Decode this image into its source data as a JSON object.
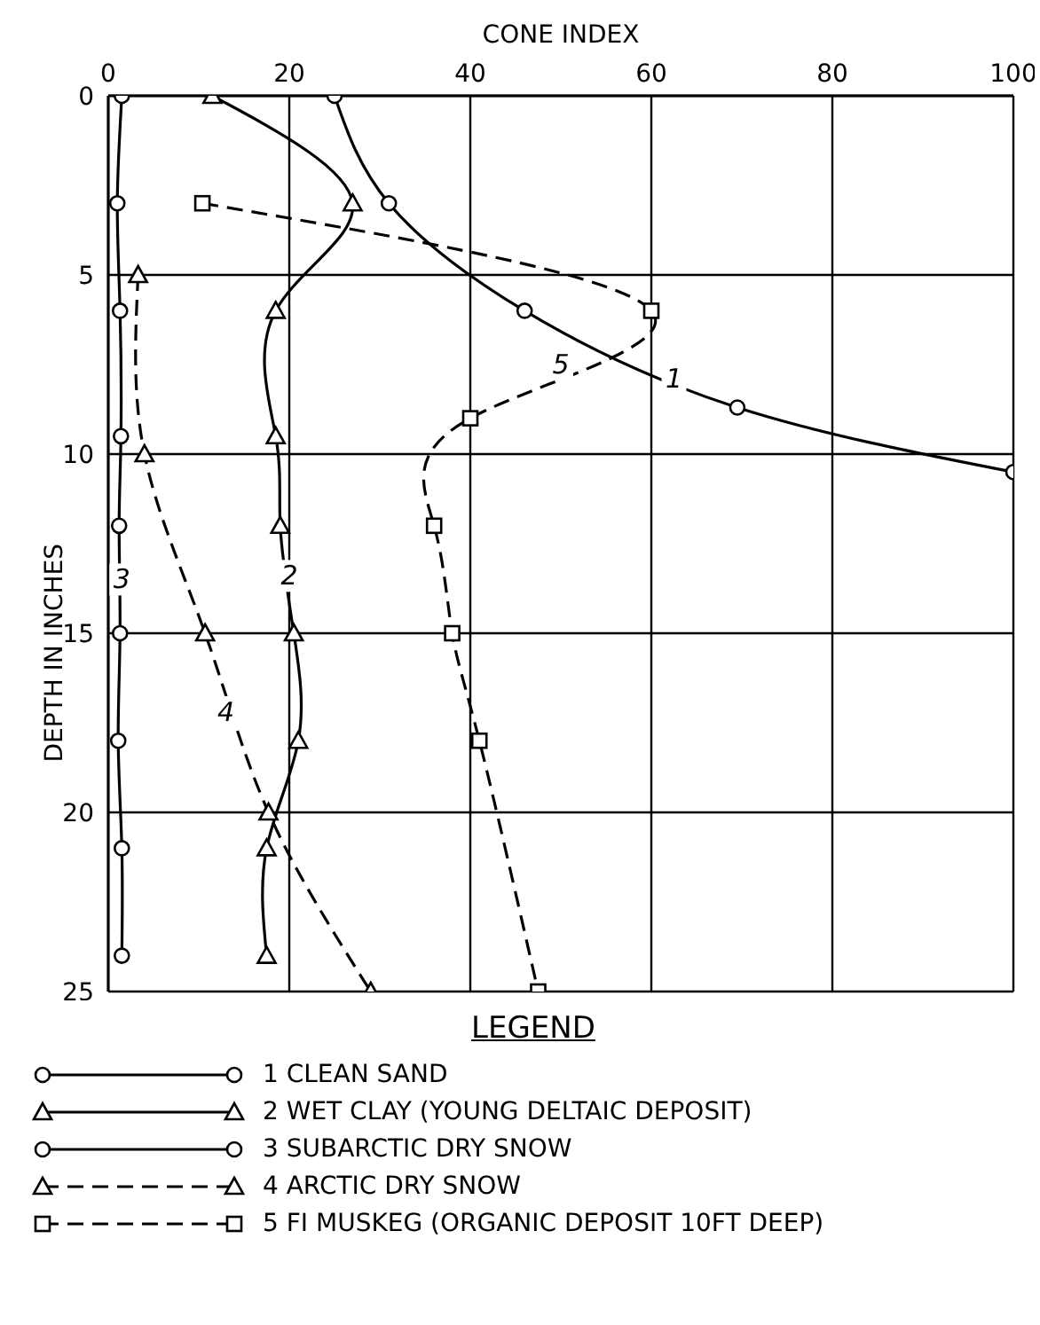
{
  "chart_data": {
    "type": "line",
    "xlabel": "CONE INDEX",
    "ylabel": "DEPTH IN INCHES",
    "legend_title": "LEGEND",
    "xlim": [
      0,
      100
    ],
    "xticks": [
      0,
      20,
      40,
      60,
      80,
      100
    ],
    "ylim": [
      25,
      0
    ],
    "yticks": [
      0,
      5,
      10,
      15,
      20,
      25
    ],
    "grid": true,
    "legend": "bottom",
    "series": [
      {
        "name": "1 CLEAN SAND",
        "color": "#000000",
        "marker": "circle",
        "line_style": "solid",
        "x": [
          25,
          31,
          46,
          69.5,
          100
        ],
        "values": [
          0,
          3,
          6,
          8.7,
          10.5
        ]
      },
      {
        "name": "2 WET CLAY (YOUNG DELTAIC DEPOSIT)",
        "color": "#000000",
        "marker": "triangle",
        "line_style": "solid",
        "x": [
          11.5,
          27,
          18.5,
          18.5,
          19,
          20.5,
          21,
          17.5,
          17.5
        ],
        "values": [
          0,
          3,
          6,
          9.5,
          12,
          15,
          18,
          21,
          24
        ]
      },
      {
        "name": "3 SUBARCTIC DRY SNOW",
        "color": "#000000",
        "marker": "circle",
        "line_style": "solid",
        "x": [
          1.5,
          1,
          1.3,
          1.4,
          1.2,
          1.3,
          1.1,
          1.5,
          1.5
        ],
        "values": [
          0,
          3,
          6,
          9.5,
          12,
          15,
          18,
          21,
          24
        ]
      },
      {
        "name": "4 ARCTIC DRY SNOW",
        "color": "#000000",
        "marker": "triangle",
        "line_style": "dashed",
        "x": [
          3.3,
          4,
          10.7,
          17.7,
          29
        ],
        "values": [
          5,
          10,
          15,
          20,
          25
        ]
      },
      {
        "name": "5 FI MUSKEG (ORGANIC DEPOSIT 10FT DEEP)",
        "color": "#000000",
        "marker": "square",
        "line_style": "dashed",
        "x": [
          10.4,
          60,
          40,
          36,
          38,
          41,
          47.5
        ],
        "values": [
          3,
          6,
          9,
          12,
          15,
          18,
          25
        ]
      }
    ],
    "annotations": [
      {
        "text": "1",
        "x": 62.5,
        "y": 7.9
      },
      {
        "text": "2",
        "x": 20,
        "y": 13.4
      },
      {
        "text": "3",
        "x": 1.5,
        "y": 13.5
      },
      {
        "text": "4",
        "x": 13,
        "y": 17.2
      },
      {
        "text": "5",
        "x": 50,
        "y": 7.5
      }
    ]
  }
}
